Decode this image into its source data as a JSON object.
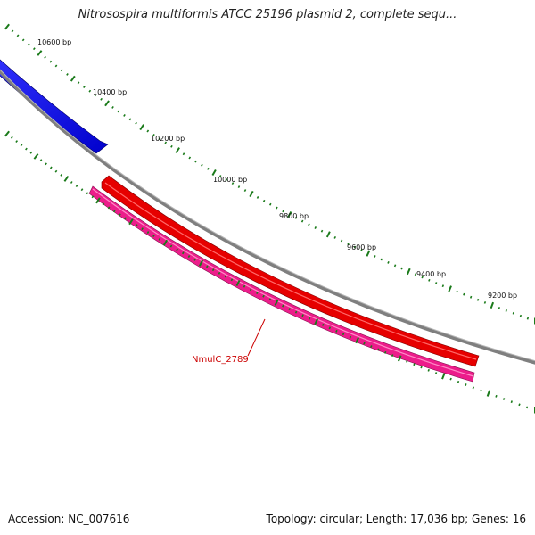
{
  "title": "Nitrosospira multiformis ATCC 25196 plasmid 2, complete sequ...",
  "footer": {
    "accession": "Accession: NC_007616",
    "summary": "Topology: circular; Length: 17,036 bp; Genes: 16"
  },
  "scale": {
    "tick_labels": [
      "10600 bp",
      "10400 bp",
      "10200 bp",
      "10000 bp",
      "9800 bp",
      "9600 bp",
      "9400 bp",
      "9200 bp"
    ],
    "tick_color": "#1a7a1a"
  },
  "backbone": {
    "color": "#808080"
  },
  "genes": [
    {
      "id": "blue-feature",
      "color": "#0000ee",
      "track": "outer"
    },
    {
      "id": "red-feature",
      "color": "#ee0000",
      "track": "inner"
    },
    {
      "id": "magenta-feature",
      "color": "#ee1f8f",
      "track": "inner2"
    }
  ],
  "gene_label": "NmulC_2789"
}
